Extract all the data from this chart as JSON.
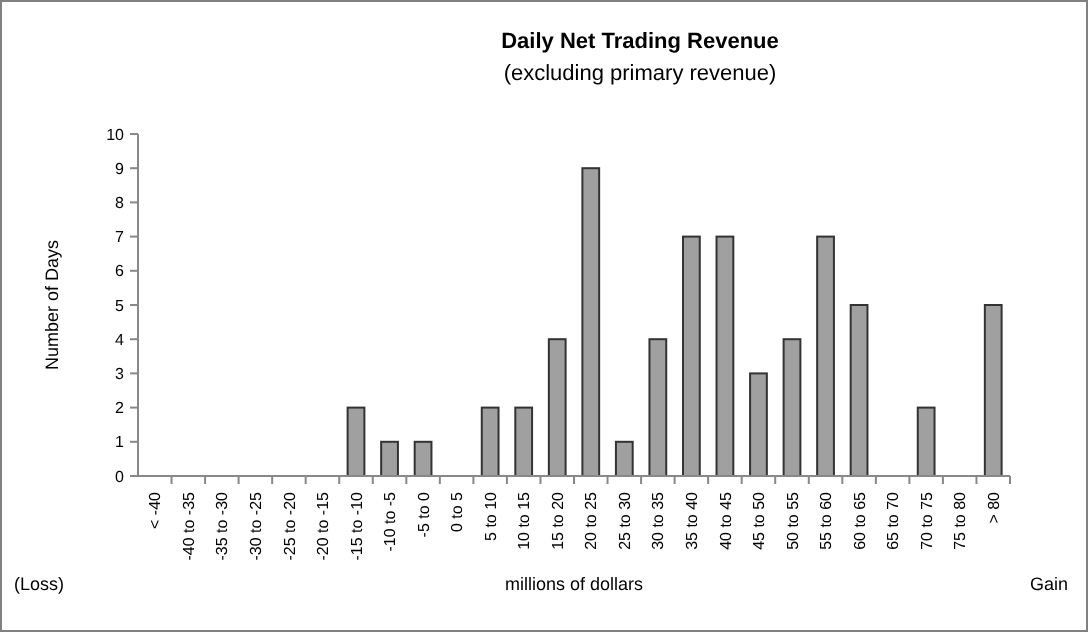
{
  "chart_data": {
    "type": "bar",
    "title": "Daily Net Trading Revenue",
    "subtitle": "(excluding primary revenue)",
    "xlabel": "millions of dollars",
    "ylabel": "Number of Days",
    "categories": [
      "< -40",
      "-40 to -35",
      "-35 to -30",
      "-30 to -25",
      "-25 to -20",
      "-20 to -15",
      "-15 to -10",
      "-10 to -5",
      "-5 to 0",
      "0 to 5",
      "5 to 10",
      "10 to 15",
      "15 to 20",
      "20 to 25",
      "25 to 30",
      "30 to 35",
      "35 to 40",
      "40 to 45",
      "45 to 50",
      "50 to 55",
      "55 to 60",
      "60 to 65",
      "65 to 70",
      "70 to 75",
      "75 to 80",
      "> 80"
    ],
    "values": [
      0,
      0,
      0,
      0,
      0,
      0,
      2,
      1,
      1,
      0,
      2,
      2,
      4,
      9,
      1,
      4,
      7,
      7,
      3,
      4,
      7,
      5,
      0,
      2,
      0,
      5
    ],
    "color": "#a0a0a0",
    "ylim": [
      0,
      10
    ],
    "yticks": [
      0,
      1,
      2,
      3,
      4,
      5,
      6,
      7,
      8,
      9,
      10
    ],
    "grid": false,
    "annotations": [
      "(Loss)",
      "Gain"
    ]
  }
}
